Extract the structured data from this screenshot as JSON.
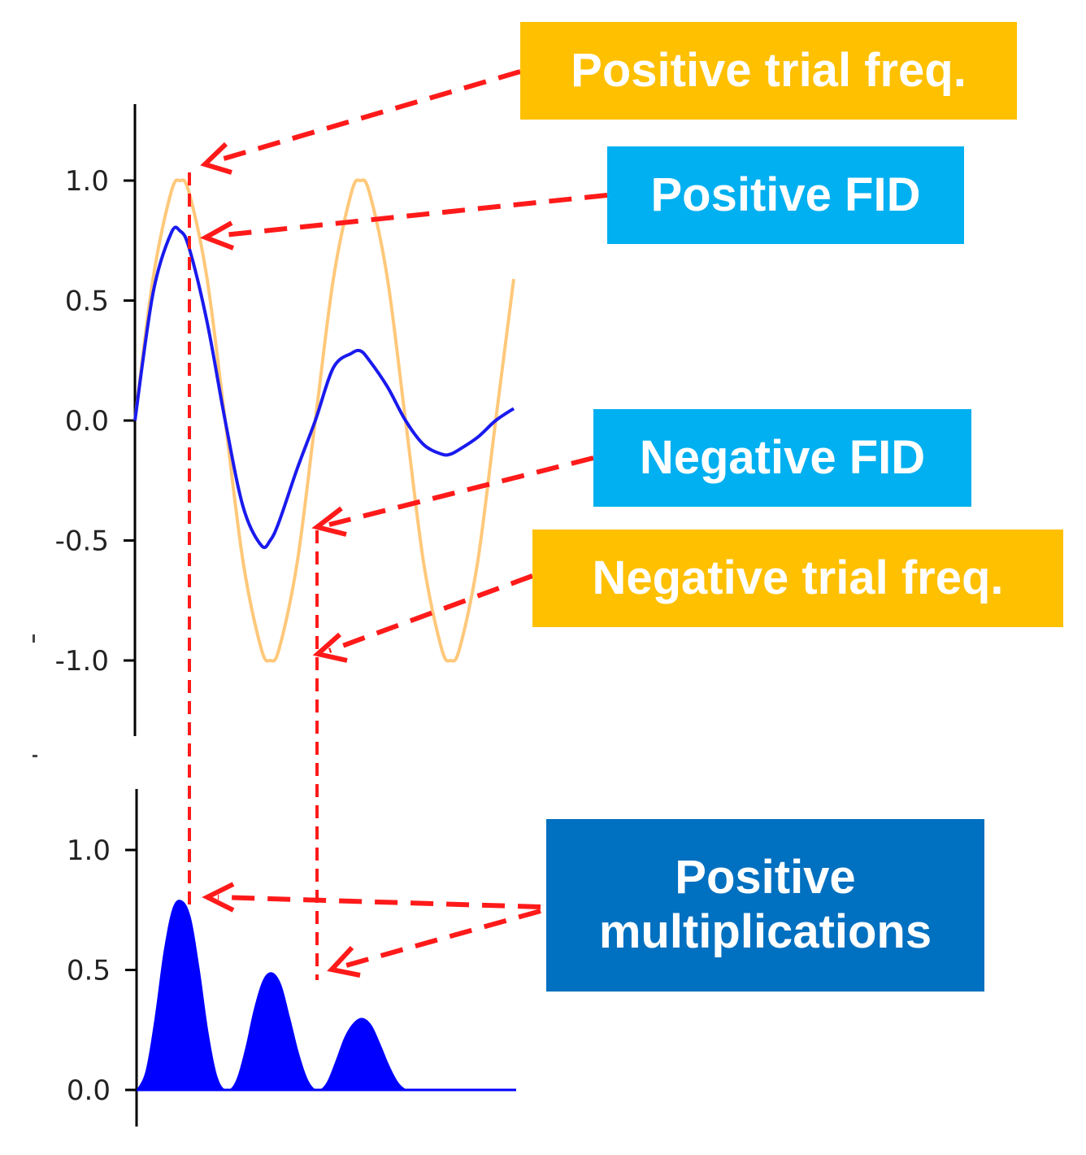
{
  "colors": {
    "trial": "#FFC000",
    "fid_box": "#00B0F0",
    "mult_box": "#0070C0",
    "fid_line": "#1a1aee",
    "trial_line": "#FFC87A",
    "annotation": "#ff1a1a",
    "axis": "#000000"
  },
  "labels": {
    "positive_trial": "Positive trial freq.",
    "positive_fid": "Positive FID",
    "negative_fid": "Negative FID",
    "negative_trial": "Negative trial freq.",
    "positive_mult_line1": "Positive",
    "positive_mult_line2": "multiplications"
  },
  "chart_data": [
    {
      "type": "line",
      "title": "",
      "xlabel": "",
      "ylabel": "",
      "ylim": [
        -1.3,
        1.3
      ],
      "yticks": [
        "1.0",
        "0.5",
        "0.0",
        "-0.5",
        "-1.0"
      ],
      "ytick_values": [
        1.0,
        0.5,
        0.0,
        -0.5,
        -1.0
      ],
      "x_range": [
        0,
        2.1
      ],
      "series": [
        {
          "role": "trial",
          "color": "#FFC87A",
          "x": [
            0,
            0.1,
            0.2,
            0.25,
            0.3,
            0.4,
            0.5,
            0.6,
            0.7,
            0.75,
            0.8,
            0.9,
            1.0,
            1.1,
            1.2,
            1.25,
            1.3,
            1.4,
            1.5,
            1.6,
            1.7,
            1.75,
            1.8,
            1.9,
            2.0,
            2.1
          ],
          "y": [
            0.0,
            0.59,
            0.95,
            1.0,
            0.95,
            0.59,
            0.0,
            -0.59,
            -0.95,
            -1.0,
            -0.95,
            -0.59,
            0.0,
            0.59,
            0.95,
            1.0,
            0.95,
            0.59,
            0.0,
            -0.59,
            -0.95,
            -1.0,
            -0.95,
            -0.59,
            0.0,
            0.59
          ]
        },
        {
          "role": "fid",
          "color": "#1a1aee",
          "x": [
            0,
            0.1,
            0.2,
            0.25,
            0.3,
            0.4,
            0.5,
            0.6,
            0.7,
            0.75,
            0.8,
            0.9,
            1.0,
            1.1,
            1.2,
            1.25,
            1.3,
            1.4,
            1.5,
            1.6,
            1.7,
            1.75,
            1.8,
            1.9,
            2.0,
            2.1
          ],
          "y": [
            0.0,
            0.53,
            0.78,
            0.79,
            0.72,
            0.41,
            0.0,
            -0.36,
            -0.52,
            -0.5,
            -0.42,
            -0.2,
            0.0,
            0.22,
            0.28,
            0.29,
            0.25,
            0.14,
            0.0,
            -0.1,
            -0.14,
            -0.14,
            -0.12,
            -0.07,
            0.0,
            0.05
          ]
        }
      ]
    },
    {
      "type": "area",
      "title": "",
      "xlabel": "",
      "ylabel": "",
      "ylim": [
        0,
        1.25
      ],
      "yticks": [
        "1.0",
        "0.5",
        "0.0"
      ],
      "ytick_values": [
        1.0,
        0.5,
        0.0
      ],
      "x_range": [
        0,
        2.1
      ],
      "series": [
        {
          "role": "multiplication",
          "color": "#0000ff",
          "x": [
            0,
            0.05,
            0.1,
            0.15,
            0.2,
            0.25,
            0.3,
            0.35,
            0.4,
            0.45,
            0.5,
            0.55,
            0.6,
            0.65,
            0.7,
            0.75,
            0.8,
            0.85,
            0.9,
            0.95,
            1.0,
            1.05,
            1.1,
            1.15,
            1.2,
            1.25,
            1.3,
            1.35,
            1.4,
            1.45,
            1.5,
            1.55,
            1.6,
            1.65,
            1.7,
            1.75,
            1.8,
            1.85,
            1.9,
            1.95,
            2.0,
            2.1
          ],
          "y": [
            0.0,
            0.08,
            0.3,
            0.58,
            0.76,
            0.79,
            0.72,
            0.5,
            0.23,
            0.05,
            0.0,
            0.04,
            0.17,
            0.34,
            0.46,
            0.49,
            0.44,
            0.3,
            0.15,
            0.04,
            0.0,
            0.03,
            0.12,
            0.22,
            0.28,
            0.3,
            0.27,
            0.19,
            0.1,
            0.03,
            0.0,
            0.0,
            0.0,
            0.0,
            0.0,
            0.0,
            0.0,
            0.0,
            0.0,
            0.0,
            0.0,
            0.0
          ]
        }
      ]
    }
  ]
}
